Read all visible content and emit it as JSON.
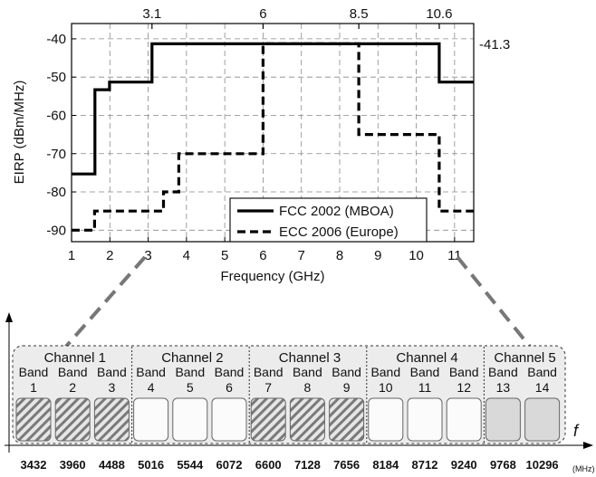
{
  "chart_data": [
    {
      "type": "line",
      "subtype": "step",
      "xlabel": "Frequency (GHz)",
      "ylabel": "EIRP (dBm/MHz)",
      "xlim": [
        1,
        11.5
      ],
      "ylim": [
        -93,
        -36
      ],
      "x_ticks": [
        1,
        2,
        3,
        4,
        5,
        6,
        7,
        8,
        9,
        10,
        11
      ],
      "y_ticks": [
        -90,
        -80,
        -70,
        -60,
        -50,
        -40
      ],
      "top_ticks": [
        "3.1",
        "6",
        "8.5",
        "10.6"
      ],
      "top_tick_values": [
        3.1,
        6,
        8.5,
        10.6
      ],
      "right_annotation": "-41.3",
      "grid": true,
      "legend_position": "bottom-right",
      "series": [
        {
          "name": "FCC 2002 (MBOA)",
          "style": "solid",
          "x": [
            1,
            1.61,
            1.61,
            1.99,
            1.99,
            3.1,
            3.1,
            10.6,
            10.6,
            11.5
          ],
          "y": [
            -75.3,
            -75.3,
            -53.3,
            -53.3,
            -51.3,
            -51.3,
            -41.3,
            -41.3,
            -51.3,
            -51.3
          ]
        },
        {
          "name": "ECC 2006 (Europe)",
          "style": "dashed",
          "x": [
            1,
            1.6,
            1.6,
            3.4,
            3.4,
            3.8,
            3.8,
            6,
            6,
            8.5,
            8.5,
            10.6,
            10.6,
            11.5
          ],
          "y": [
            -90,
            -90,
            -85,
            -85,
            -80,
            -80,
            -70,
            -70,
            -41.3,
            -41.3,
            -65,
            -65,
            -85,
            -85
          ]
        }
      ]
    },
    {
      "type": "diagram",
      "x_axis_label": "f",
      "unit": "(MHz)",
      "channels": [
        {
          "label": "Channel 1",
          "bands": [
            1,
            2,
            3
          ]
        },
        {
          "label": "Channel 2",
          "bands": [
            4,
            5,
            6
          ]
        },
        {
          "label": "Channel 3",
          "bands": [
            7,
            8,
            9
          ]
        },
        {
          "label": "Channel 4",
          "bands": [
            10,
            11,
            12
          ]
        },
        {
          "label": "Channel 5",
          "bands": [
            13,
            14
          ]
        }
      ],
      "bands": [
        {
          "word": "Band",
          "num": "1",
          "fill": "hatched"
        },
        {
          "word": "Band",
          "num": "2",
          "fill": "hatched"
        },
        {
          "word": "Band",
          "num": "3",
          "fill": "hatched"
        },
        {
          "word": "Band",
          "num": "4",
          "fill": "white"
        },
        {
          "word": "Band",
          "num": "5",
          "fill": "white"
        },
        {
          "word": "Band",
          "num": "6",
          "fill": "white"
        },
        {
          "word": "Band",
          "num": "7",
          "fill": "hatched"
        },
        {
          "word": "Band",
          "num": "8",
          "fill": "hatched"
        },
        {
          "word": "Band",
          "num": "9",
          "fill": "hatched"
        },
        {
          "word": "Band",
          "num": "10",
          "fill": "white"
        },
        {
          "word": "Band",
          "num": "11",
          "fill": "white"
        },
        {
          "word": "Band",
          "num": "12",
          "fill": "white"
        },
        {
          "word": "Band",
          "num": "13",
          "fill": "gray"
        },
        {
          "word": "Band",
          "num": "14",
          "fill": "gray"
        }
      ],
      "center_frequencies": [
        "3432",
        "3960",
        "4488",
        "5016",
        "5544",
        "6072",
        "6600",
        "7128",
        "7656",
        "8184",
        "8712",
        "9240",
        "9768",
        "10296"
      ]
    }
  ]
}
